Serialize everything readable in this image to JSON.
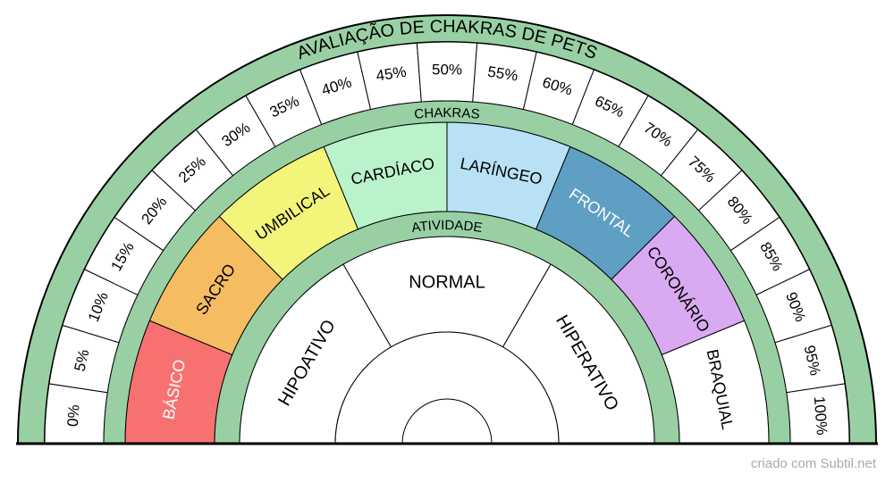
{
  "title": "AVALIAÇÃO DE CHAKRAS DE PETS",
  "chakras_label": "CHAKRAS",
  "activity_label": "ATIVIDADE",
  "percentages": [
    "0%",
    "5%",
    "10%",
    "15%",
    "20%",
    "25%",
    "30%",
    "35%",
    "40%",
    "45%",
    "50%",
    "55%",
    "60%",
    "65%",
    "70%",
    "75%",
    "80%",
    "85%",
    "90%",
    "95%",
    "100%"
  ],
  "chakras": [
    {
      "label": "BÁSICO",
      "color": "#f87171"
    },
    {
      "label": "SACRO",
      "color": "#f5bc62"
    },
    {
      "label": "UMBILICAL",
      "color": "#f3f57a"
    },
    {
      "label": "CARDÍACO",
      "color": "#b9f2cb"
    },
    {
      "label": "LARÍNGEO",
      "color": "#b9e1f5"
    },
    {
      "label": "FRONTAL",
      "color": "#5f9fc4"
    },
    {
      "label": "CORONÁRIO",
      "color": "#d9aaf2"
    },
    {
      "label": "BRAQUIAL",
      "color": "#ffffff"
    }
  ],
  "activities": [
    "HIPOATIVO",
    "NORMAL",
    "HIPERATIVO"
  ],
  "footer": "criado com Subtil.net"
}
